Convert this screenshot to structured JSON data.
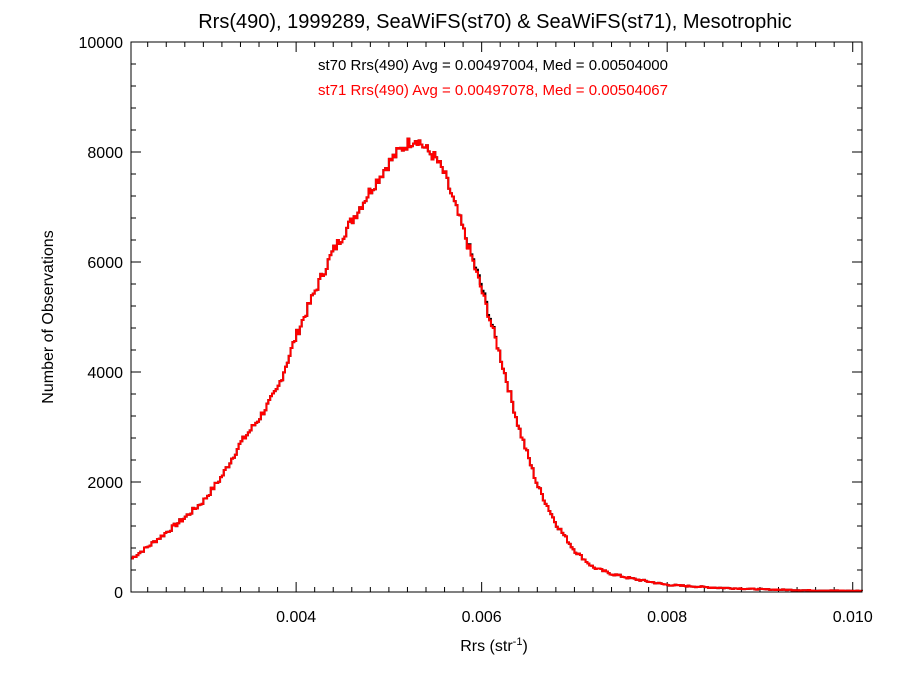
{
  "chart_data": {
    "type": "histogram",
    "title": "Rrs(490), 1999289, SeaWiFS(st70) & SeaWiFS(st71), Mesotrophic",
    "xlabel_main": "Rrs (str",
    "xlabel_sup": "-1",
    "xlabel_close": ")",
    "ylabel": "Number of Observations",
    "xlim": [
      0.00222,
      0.0101
    ],
    "ylim": [
      0,
      10000
    ],
    "x_ticks": [
      0.004,
      0.006,
      0.008,
      0.01
    ],
    "x_tick_labels": [
      "0.004",
      "0.006",
      "0.008",
      "0.010"
    ],
    "y_ticks": [
      0,
      2000,
      4000,
      6000,
      8000,
      10000
    ],
    "y_tick_labels": [
      "0",
      "2000",
      "4000",
      "6000",
      "8000",
      "10000"
    ],
    "annotations": [
      {
        "text": "st70 Rrs(490) Avg = 0.00497004, Med = 0.00504000",
        "color": "#000000"
      },
      {
        "text": "st71 Rrs(490) Avg = 0.00497078, Med = 0.00504067",
        "color": "#ff0000"
      }
    ],
    "series": [
      {
        "name": "st70",
        "color": "#000000",
        "x": [
          0.00222,
          0.0024,
          0.0026,
          0.0028,
          0.003,
          0.0032,
          0.0034,
          0.0036,
          0.0038,
          0.004,
          0.0042,
          0.0044,
          0.0046,
          0.0048,
          0.005,
          0.0051,
          0.0052,
          0.0053,
          0.0054,
          0.0055,
          0.0056,
          0.0058,
          0.006,
          0.0062,
          0.0064,
          0.0066,
          0.0068,
          0.007,
          0.0072,
          0.0074,
          0.0076,
          0.0078,
          0.008,
          0.0085,
          0.009,
          0.0095,
          0.0101
        ],
        "values": [
          600,
          820,
          1080,
          1350,
          1650,
          2100,
          2700,
          3150,
          3680,
          4650,
          5450,
          6200,
          6750,
          7300,
          7800,
          8000,
          8150,
          8250,
          8050,
          7900,
          7600,
          6600,
          5550,
          4300,
          3000,
          1950,
          1250,
          760,
          450,
          330,
          250,
          190,
          130,
          80,
          50,
          30,
          20
        ]
      },
      {
        "name": "st71",
        "color": "#ff0000",
        "x": [
          0.00222,
          0.0024,
          0.0026,
          0.0028,
          0.003,
          0.0032,
          0.0034,
          0.0036,
          0.0038,
          0.004,
          0.0042,
          0.0044,
          0.0046,
          0.0048,
          0.005,
          0.0051,
          0.0052,
          0.0053,
          0.0054,
          0.0055,
          0.0056,
          0.0058,
          0.006,
          0.0062,
          0.0064,
          0.0066,
          0.0068,
          0.007,
          0.0072,
          0.0074,
          0.0076,
          0.0078,
          0.008,
          0.0085,
          0.009,
          0.0095,
          0.0101
        ],
        "values": [
          600,
          820,
          1080,
          1350,
          1650,
          2100,
          2700,
          3150,
          3680,
          4650,
          5450,
          6200,
          6750,
          7300,
          7800,
          8000,
          8150,
          8250,
          8050,
          7900,
          7600,
          6600,
          5500,
          4300,
          3000,
          1950,
          1250,
          760,
          450,
          330,
          250,
          190,
          130,
          80,
          50,
          30,
          20
        ]
      }
    ]
  }
}
